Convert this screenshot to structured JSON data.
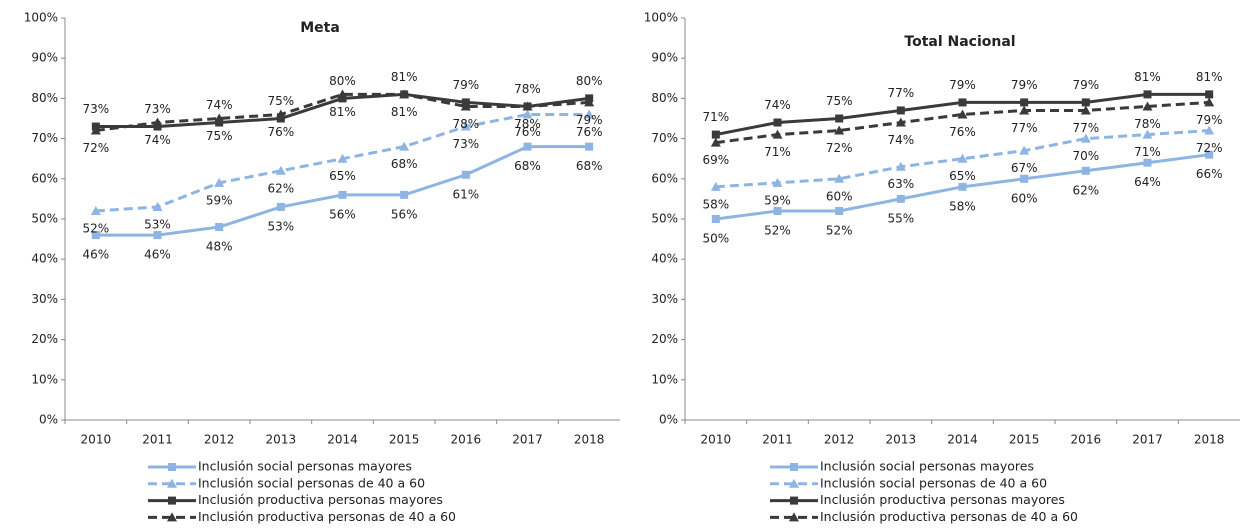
{
  "chart_data": [
    {
      "type": "line",
      "title": "Meta",
      "categories": [
        "2010",
        "2011",
        "2012",
        "2013",
        "2014",
        "2015",
        "2016",
        "2017",
        "2018"
      ],
      "ylim": [
        0,
        100
      ],
      "yticks": [
        {
          "value": 0,
          "label": "0%"
        },
        {
          "value": 10,
          "label": "10%"
        },
        {
          "value": 20,
          "label": "20%"
        },
        {
          "value": 30,
          "label": "30%"
        },
        {
          "value": 40,
          "label": "40%"
        },
        {
          "value": 50,
          "label": "50%"
        },
        {
          "value": 60,
          "label": "60%"
        },
        {
          "value": 70,
          "label": "70%"
        },
        {
          "value": 80,
          "label": "80%"
        },
        {
          "value": 90,
          "label": "90%"
        },
        {
          "value": 100,
          "label": "100%"
        }
      ],
      "series": [
        {
          "name": "Inclusión social personas mayores",
          "color": "#8eb4e3",
          "marker": "square",
          "dashed": false,
          "values": [
            46,
            46,
            48,
            53,
            56,
            56,
            61,
            68,
            68
          ],
          "value_labels": [
            "46%",
            "46%",
            "48%",
            "53%",
            "56%",
            "56%",
            "61%",
            "68%",
            "68%"
          ]
        },
        {
          "name": "Inclusión social personas de 40 a 60",
          "color": "#8eb4e3",
          "marker": "triangle",
          "dashed": true,
          "values": [
            52,
            53,
            59,
            62,
            65,
            68,
            73,
            76,
            76
          ],
          "value_labels": [
            "52%",
            "53%",
            "59%",
            "62%",
            "65%",
            "68%",
            "73%",
            "76%",
            "76%"
          ]
        },
        {
          "name": "Inclusión productiva personas mayores",
          "color": "#3a3a3a",
          "marker": "square",
          "dashed": false,
          "values": [
            73,
            73,
            74,
            75,
            80,
            81,
            79,
            78,
            80
          ],
          "value_labels": [
            "73%",
            "73%",
            "74%",
            "75%",
            "80%",
            "81%",
            "79%",
            "78%",
            "80%"
          ]
        },
        {
          "name": "Inclusión productiva personas de 40 a 60",
          "color": "#3a3a3a",
          "marker": "triangle",
          "dashed": true,
          "values": [
            72,
            74,
            75,
            76,
            81,
            81,
            78,
            78,
            79
          ],
          "value_labels": [
            "72%",
            "74%",
            "75%",
            "76%",
            "81%",
            "81%",
            "78%",
            "78%",
            "79%"
          ]
        }
      ]
    },
    {
      "type": "line",
      "title": "Total Nacional",
      "categories": [
        "2010",
        "2011",
        "2012",
        "2013",
        "2014",
        "2015",
        "2016",
        "2017",
        "2018"
      ],
      "ylim": [
        0,
        100
      ],
      "yticks": [
        {
          "value": 0,
          "label": "0%"
        },
        {
          "value": 10,
          "label": "10%"
        },
        {
          "value": 20,
          "label": "20%"
        },
        {
          "value": 30,
          "label": "30%"
        },
        {
          "value": 40,
          "label": "40%"
        },
        {
          "value": 50,
          "label": "50%"
        },
        {
          "value": 60,
          "label": "60%"
        },
        {
          "value": 70,
          "label": "70%"
        },
        {
          "value": 80,
          "label": "80%"
        },
        {
          "value": 90,
          "label": "90%"
        },
        {
          "value": 100,
          "label": "100%"
        }
      ],
      "series": [
        {
          "name": "Inclusión social personas mayores",
          "color": "#8eb4e3",
          "marker": "square",
          "dashed": false,
          "values": [
            50,
            52,
            52,
            55,
            58,
            60,
            62,
            64,
            66
          ],
          "value_labels": [
            "50%",
            "52%",
            "52%",
            "55%",
            "58%",
            "60%",
            "62%",
            "64%",
            "66%"
          ]
        },
        {
          "name": "Inclusión social personas de 40 a 60",
          "color": "#8eb4e3",
          "marker": "triangle",
          "dashed": true,
          "values": [
            58,
            59,
            60,
            63,
            65,
            67,
            70,
            71,
            72
          ],
          "value_labels": [
            "58%",
            "59%",
            "60%",
            "63%",
            "65%",
            "67%",
            "70%",
            "71%",
            "72%"
          ]
        },
        {
          "name": "Inclusión productiva personas mayores",
          "color": "#3a3a3a",
          "marker": "square",
          "dashed": false,
          "values": [
            71,
            74,
            75,
            77,
            79,
            79,
            79,
            81,
            81
          ],
          "value_labels": [
            "71%",
            "74%",
            "75%",
            "77%",
            "79%",
            "79%",
            "79%",
            "81%",
            "81%"
          ]
        },
        {
          "name": "Inclusión productiva personas de 40 a 60",
          "color": "#3a3a3a",
          "marker": "triangle",
          "dashed": true,
          "values": [
            69,
            71,
            72,
            74,
            76,
            77,
            77,
            78,
            79
          ],
          "value_labels": [
            "69%",
            "71%",
            "72%",
            "74%",
            "76%",
            "77%",
            "77%",
            "78%",
            "79%"
          ]
        }
      ]
    }
  ]
}
